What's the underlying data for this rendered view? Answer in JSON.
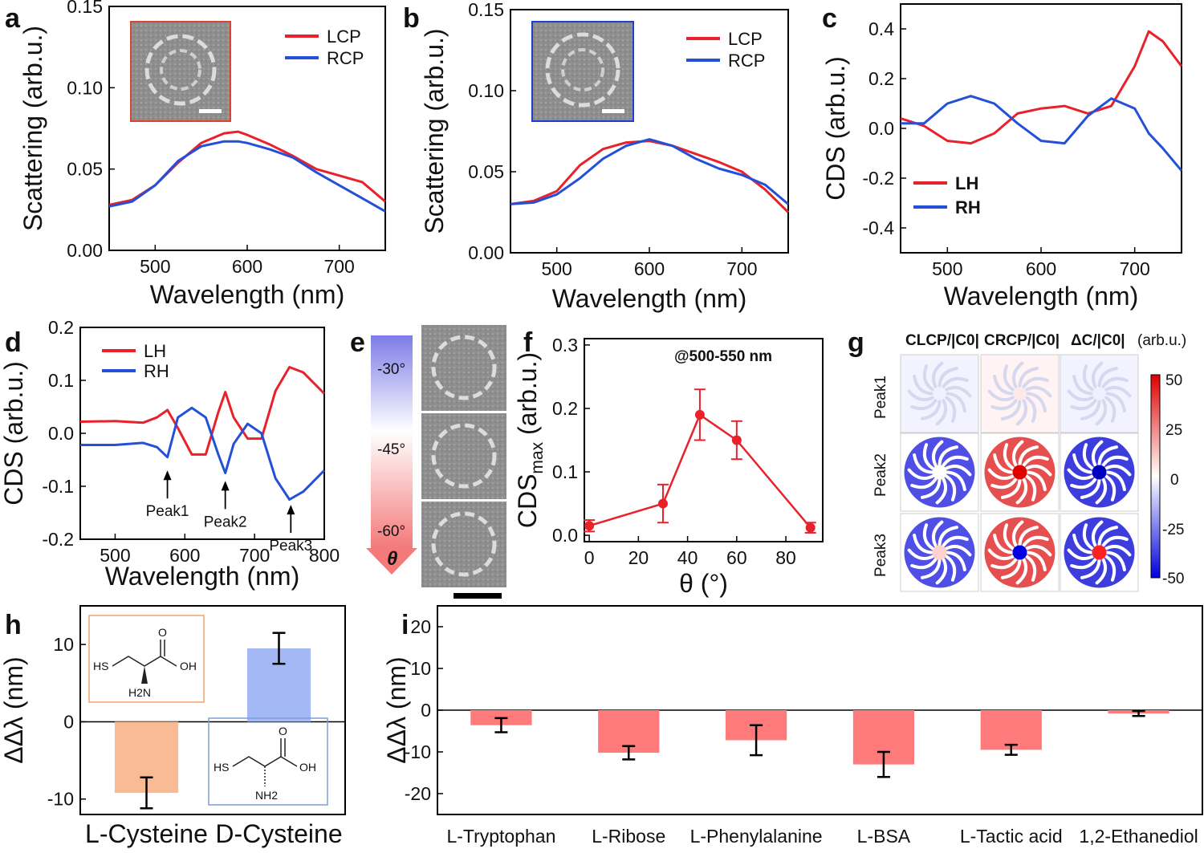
{
  "colors": {
    "lcp": "#e8212b",
    "rcp": "#2450d8",
    "bar_pink": "#ff7a7a",
    "bar_orange": "#f9bb94",
    "bar_blue": "#a3b8f5",
    "inset_a_border": "#d9452f",
    "inset_b_border": "#1f3fd0"
  },
  "panels": {
    "a": {
      "label": "a",
      "legend": [
        "LCP",
        "RCP"
      ]
    },
    "b": {
      "label": "b",
      "legend": [
        "LCP",
        "RCP"
      ]
    },
    "c": {
      "label": "c",
      "legend": [
        "LH",
        "RH"
      ]
    },
    "d": {
      "label": "d",
      "legend": [
        "LH",
        "RH"
      ],
      "annotations": [
        "Peak1",
        "Peak2",
        "Peak3"
      ]
    },
    "e": {
      "label": "e",
      "gradient_labels": [
        "-30°",
        "-45°",
        "-60°"
      ],
      "axis_symbol": "θ"
    },
    "f": {
      "label": "f",
      "annotation": "@500-550 nm"
    },
    "g": {
      "label": "g",
      "col_headers": [
        "CLCP/|C0|",
        "CRCP/|C0|",
        "ΔC/|C0|"
      ],
      "unit": "(arb.u.)",
      "rows": [
        "Peak1",
        "Peak2",
        "Peak3"
      ],
      "colorbar_ticks": [
        "50",
        "25",
        "0",
        "-25",
        "-50"
      ]
    },
    "h": {
      "label": "h",
      "molecules": {
        "L": {
          "sh": "HS",
          "oh": "OH",
          "o": "O",
          "n": "H2N"
        },
        "D": {
          "sh": "HS",
          "oh": "OH",
          "o": "O",
          "n": "NH2"
        }
      }
    },
    "i": {
      "label": "i"
    }
  },
  "chart_data": [
    {
      "panel": "a",
      "type": "line",
      "xlabel": "Wavelength (nm)",
      "ylabel": "Scattering (arb.u.)",
      "xlim": [
        450,
        750
      ],
      "ylim": [
        0,
        0.15
      ],
      "xticks": [
        500,
        600,
        700
      ],
      "yticks": [
        "0.00",
        "0.05",
        "0.10",
        "0.15"
      ],
      "series": [
        {
          "name": "LCP",
          "x": [
            450,
            475,
            500,
            525,
            550,
            575,
            590,
            600,
            625,
            650,
            675,
            700,
            725,
            750
          ],
          "y": [
            0.028,
            0.031,
            0.04,
            0.054,
            0.066,
            0.072,
            0.073,
            0.071,
            0.065,
            0.058,
            0.05,
            0.046,
            0.042,
            0.03
          ]
        },
        {
          "name": "RCP",
          "x": [
            450,
            475,
            500,
            525,
            550,
            575,
            590,
            600,
            625,
            650,
            675,
            700,
            725,
            750
          ],
          "y": [
            0.027,
            0.03,
            0.04,
            0.055,
            0.064,
            0.067,
            0.067,
            0.066,
            0.062,
            0.057,
            0.048,
            0.04,
            0.032,
            0.024
          ]
        }
      ]
    },
    {
      "panel": "b",
      "type": "line",
      "xlabel": "Wavelength (nm)",
      "ylabel": "Scattering (arb.u.)",
      "xlim": [
        450,
        750
      ],
      "ylim": [
        0,
        0.15
      ],
      "xticks": [
        500,
        600,
        700
      ],
      "yticks": [
        "0.00",
        "0.05",
        "0.10",
        "0.15"
      ],
      "series": [
        {
          "name": "LCP",
          "x": [
            450,
            475,
            500,
            525,
            550,
            575,
            600,
            625,
            650,
            675,
            700,
            725,
            750
          ],
          "y": [
            0.03,
            0.032,
            0.038,
            0.054,
            0.064,
            0.068,
            0.069,
            0.066,
            0.061,
            0.056,
            0.05,
            0.039,
            0.025
          ]
        },
        {
          "name": "RCP",
          "x": [
            450,
            475,
            500,
            525,
            550,
            575,
            600,
            625,
            650,
            675,
            700,
            725,
            750
          ],
          "y": [
            0.03,
            0.031,
            0.036,
            0.046,
            0.058,
            0.066,
            0.07,
            0.066,
            0.058,
            0.052,
            0.048,
            0.042,
            0.03
          ]
        }
      ]
    },
    {
      "panel": "c",
      "type": "line",
      "xlabel": "Wavelength (nm)",
      "ylabel": "CDS (arb.u.)",
      "xlim": [
        450,
        750
      ],
      "ylim": [
        -0.5,
        0.5
      ],
      "xticks": [
        500,
        600,
        700
      ],
      "yticks": [
        "-0.4",
        "-0.2",
        "0.0",
        "0.2",
        "0.4"
      ],
      "series": [
        {
          "name": "LH",
          "x": [
            450,
            475,
            500,
            525,
            550,
            575,
            600,
            625,
            650,
            675,
            700,
            715,
            730,
            750
          ],
          "y": [
            0.04,
            0.01,
            -0.05,
            -0.06,
            -0.02,
            0.06,
            0.08,
            0.09,
            0.06,
            0.09,
            0.25,
            0.39,
            0.35,
            0.25
          ]
        },
        {
          "name": "RH",
          "x": [
            450,
            475,
            500,
            525,
            550,
            575,
            600,
            625,
            650,
            675,
            700,
            715,
            730,
            750
          ],
          "y": [
            0.02,
            0.02,
            0.1,
            0.13,
            0.1,
            0.02,
            -0.05,
            -0.06,
            0.05,
            0.12,
            0.08,
            -0.02,
            -0.08,
            -0.17
          ]
        }
      ]
    },
    {
      "panel": "d",
      "type": "line",
      "xlabel": "Wavelength (nm)",
      "ylabel": "CDS (arb.u.)",
      "xlim": [
        450,
        800
      ],
      "ylim": [
        -0.2,
        0.2
      ],
      "xticks": [
        500,
        600,
        700,
        800
      ],
      "yticks": [
        "-0.2",
        "-0.1",
        "0.0",
        "0.1",
        "0.2"
      ],
      "series": [
        {
          "name": "LH",
          "x": [
            450,
            500,
            540,
            560,
            575,
            590,
            610,
            630,
            648,
            658,
            670,
            690,
            710,
            730,
            750,
            770,
            800
          ],
          "y": [
            0.022,
            0.023,
            0.02,
            0.03,
            0.044,
            0.01,
            -0.04,
            -0.04,
            0.04,
            0.078,
            0.03,
            -0.01,
            -0.01,
            0.08,
            0.125,
            0.115,
            0.075
          ]
        },
        {
          "name": "RH",
          "x": [
            450,
            500,
            540,
            560,
            575,
            590,
            610,
            630,
            648,
            658,
            670,
            690,
            710,
            730,
            750,
            770,
            800
          ],
          "y": [
            -0.022,
            -0.022,
            -0.018,
            -0.026,
            -0.045,
            0.03,
            0.048,
            0.03,
            -0.04,
            -0.075,
            -0.02,
            0.018,
            0.0,
            -0.085,
            -0.125,
            -0.11,
            -0.07
          ]
        }
      ]
    },
    {
      "panel": "f",
      "type": "scatter",
      "xlabel": "θ (°)",
      "ylabel": "CDSmax (arb.u.)",
      "xlim": [
        -2,
        95
      ],
      "ylim": [
        -0.01,
        0.31
      ],
      "xticks": [
        0,
        20,
        40,
        60,
        80
      ],
      "yticks": [
        "0.0",
        "0.1",
        "0.2",
        "0.3"
      ],
      "series": [
        {
          "name": "",
          "x": [
            0,
            30,
            45,
            60,
            90
          ],
          "y": [
            0.015,
            0.05,
            0.19,
            0.15,
            0.012
          ],
          "err": [
            0.009,
            0.03,
            0.04,
            0.03,
            0.008
          ]
        }
      ]
    },
    {
      "panel": "h",
      "type": "bar",
      "xlabel": "",
      "ylabel": "ΔΔλ (nm)",
      "ylim": [
        -12,
        15
      ],
      "yticks": [
        "-10",
        "0",
        "10"
      ],
      "categories": [
        "L-Cysteine",
        "D-Cysteine"
      ],
      "values": [
        -9.2,
        9.5
      ],
      "err": [
        2.0,
        2.0
      ]
    },
    {
      "panel": "i",
      "type": "bar",
      "xlabel": "",
      "ylabel": "ΔΔλ (nm)",
      "ylim": [
        -25,
        25
      ],
      "yticks": [
        "-20",
        "-10",
        "0",
        "10",
        "20"
      ],
      "categories": [
        "L-Tryptophan",
        "L-Ribose",
        "L-Phenylalanine",
        "L-BSA",
        "L-Tactic acid",
        "1,2-Ethanediol"
      ],
      "values": [
        -3.6,
        -10.2,
        -7.2,
        -13.0,
        -9.5,
        -0.8
      ],
      "err": [
        1.7,
        1.6,
        3.6,
        3.0,
        1.2,
        0.6
      ]
    }
  ]
}
